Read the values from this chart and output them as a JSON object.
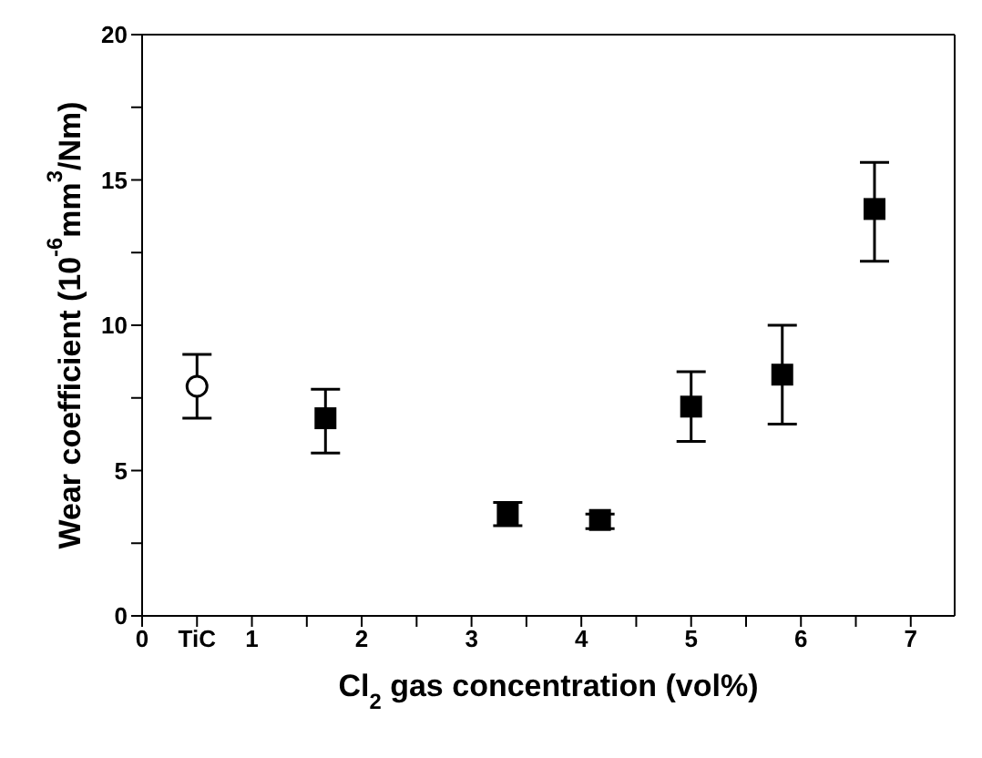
{
  "chart_data": {
    "type": "scatter",
    "xlabel": "Cl$_{2}$ gas concentration (vol%)",
    "ylabel": "Wear coefficient (10$^{-6}$mm$^{3}$/Nm)",
    "xlim": [
      0,
      7.4
    ],
    "xticks": [
      0,
      {
        "value": 0.5,
        "label": "TiC"
      },
      1,
      {
        "value": 1.5,
        "label": null
      },
      2,
      {
        "value": 2.5,
        "label": null
      },
      3,
      {
        "value": 3.5,
        "label": null
      },
      4,
      {
        "value": 4.5,
        "label": null
      },
      5,
      {
        "value": 5.5,
        "label": null
      },
      6,
      {
        "value": 6.5,
        "label": null
      },
      7
    ],
    "ylim": [
      0,
      20
    ],
    "yticks": [
      0,
      {
        "value": 2.5,
        "label": null
      },
      5,
      {
        "value": 7.5,
        "label": null
      },
      10,
      {
        "value": 12.5,
        "label": null
      },
      15,
      {
        "value": 17.5,
        "label": null
      },
      20
    ],
    "series": [
      {
        "color": "#000000",
        "marker": "circle",
        "x": [
          0.5
        ],
        "values": [
          7.9
        ],
        "errors": [
          [
            6.8,
            9.0
          ]
        ]
      },
      {
        "color": "#000000",
        "marker": "square",
        "x": [
          1.67,
          3.33,
          4.17,
          5,
          5.83,
          6.67
        ],
        "values": [
          6.8,
          3.5,
          3.3,
          7.2,
          8.3,
          14.0
        ],
        "errors": [
          [
            5.6,
            7.8
          ],
          [
            3.1,
            3.9
          ],
          [
            3.0,
            3.5
          ],
          [
            6.0,
            8.4
          ],
          [
            6.6,
            10.0
          ],
          [
            12.2,
            15.6
          ]
        ]
      }
    ]
  }
}
